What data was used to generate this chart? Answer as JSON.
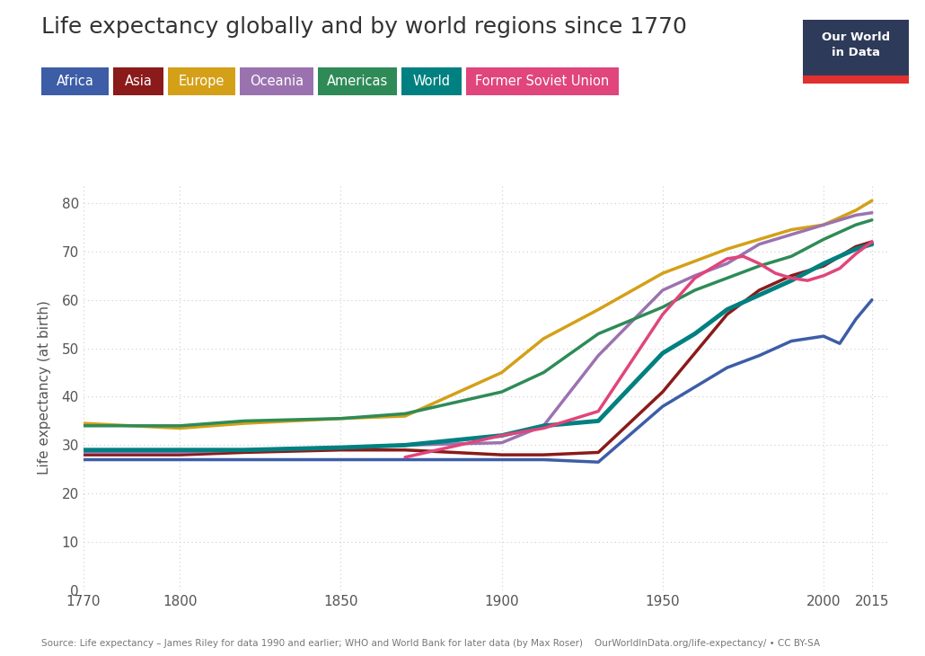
{
  "title": "Life expectancy globally and by world regions since 1770",
  "ylabel": "Life expectancy (at birth)",
  "source_text": "Source: Life expectancy – James Riley for data 1990 and earlier; WHO and World Bank for later data (by Max Roser)    OurWorldInData.org/life-expectancy/ • CC BY-SA",
  "xlim": [
    1770,
    2020
  ],
  "ylim": [
    0,
    84
  ],
  "yticks": [
    0,
    10,
    20,
    30,
    40,
    50,
    60,
    70,
    80
  ],
  "xticks": [
    1770,
    1800,
    1850,
    1900,
    1950,
    2000,
    2015
  ],
  "series": [
    {
      "name": "Africa",
      "color": "#3d5da7",
      "linewidth": 2.5,
      "data": [
        [
          1770,
          27.0
        ],
        [
          1800,
          27.0
        ],
        [
          1820,
          27.0
        ],
        [
          1850,
          27.0
        ],
        [
          1870,
          27.0
        ],
        [
          1900,
          27.0
        ],
        [
          1913,
          27.0
        ],
        [
          1930,
          26.5
        ],
        [
          1950,
          38.0
        ],
        [
          1960,
          42.0
        ],
        [
          1970,
          46.0
        ],
        [
          1980,
          48.5
        ],
        [
          1990,
          51.5
        ],
        [
          2000,
          52.5
        ],
        [
          2005,
          51.0
        ],
        [
          2010,
          56.0
        ],
        [
          2015,
          60.0
        ]
      ]
    },
    {
      "name": "Asia",
      "color": "#8b1a1a",
      "linewidth": 2.5,
      "data": [
        [
          1770,
          28.0
        ],
        [
          1800,
          28.0
        ],
        [
          1820,
          28.5
        ],
        [
          1850,
          29.0
        ],
        [
          1870,
          29.0
        ],
        [
          1900,
          28.0
        ],
        [
          1913,
          28.0
        ],
        [
          1930,
          28.5
        ],
        [
          1950,
          41.0
        ],
        [
          1960,
          49.0
        ],
        [
          1970,
          57.0
        ],
        [
          1980,
          62.0
        ],
        [
          1990,
          65.0
        ],
        [
          2000,
          67.0
        ],
        [
          2010,
          71.0
        ],
        [
          2015,
          72.0
        ]
      ]
    },
    {
      "name": "Europe",
      "color": "#d4a017",
      "linewidth": 2.5,
      "data": [
        [
          1770,
          34.5
        ],
        [
          1800,
          33.5
        ],
        [
          1820,
          34.5
        ],
        [
          1850,
          35.5
        ],
        [
          1870,
          36.0
        ],
        [
          1900,
          45.0
        ],
        [
          1913,
          52.0
        ],
        [
          1930,
          58.0
        ],
        [
          1950,
          65.5
        ],
        [
          1960,
          68.0
        ],
        [
          1970,
          70.5
        ],
        [
          1980,
          72.5
        ],
        [
          1990,
          74.5
        ],
        [
          2000,
          75.5
        ],
        [
          2010,
          78.5
        ],
        [
          2015,
          80.5
        ]
      ]
    },
    {
      "name": "Oceania",
      "color": "#9b72b0",
      "linewidth": 2.5,
      "data": [
        [
          1770,
          28.5
        ],
        [
          1800,
          28.5
        ],
        [
          1820,
          29.0
        ],
        [
          1850,
          29.5
        ],
        [
          1870,
          30.0
        ],
        [
          1900,
          30.5
        ],
        [
          1913,
          34.0
        ],
        [
          1930,
          48.5
        ],
        [
          1950,
          62.0
        ],
        [
          1960,
          65.0
        ],
        [
          1970,
          67.5
        ],
        [
          1980,
          71.5
        ],
        [
          1990,
          73.5
        ],
        [
          2000,
          75.5
        ],
        [
          2010,
          77.5
        ],
        [
          2015,
          78.0
        ]
      ]
    },
    {
      "name": "Americas",
      "color": "#2e8b57",
      "linewidth": 2.5,
      "data": [
        [
          1770,
          34.0
        ],
        [
          1800,
          34.0
        ],
        [
          1820,
          35.0
        ],
        [
          1850,
          35.5
        ],
        [
          1870,
          36.5
        ],
        [
          1900,
          41.0
        ],
        [
          1913,
          45.0
        ],
        [
          1930,
          53.0
        ],
        [
          1950,
          58.5
        ],
        [
          1960,
          62.0
        ],
        [
          1970,
          64.5
        ],
        [
          1980,
          67.0
        ],
        [
          1990,
          69.0
        ],
        [
          2000,
          72.5
        ],
        [
          2010,
          75.5
        ],
        [
          2015,
          76.5
        ]
      ]
    },
    {
      "name": "World",
      "color": "#008080",
      "linewidth": 3.5,
      "data": [
        [
          1770,
          29.0
        ],
        [
          1800,
          29.0
        ],
        [
          1820,
          29.0
        ],
        [
          1850,
          29.5
        ],
        [
          1870,
          30.0
        ],
        [
          1900,
          32.0
        ],
        [
          1913,
          34.0
        ],
        [
          1930,
          35.0
        ],
        [
          1950,
          49.0
        ],
        [
          1960,
          53.0
        ],
        [
          1970,
          58.0
        ],
        [
          1980,
          61.0
        ],
        [
          1990,
          64.0
        ],
        [
          2000,
          67.5
        ],
        [
          2010,
          70.5
        ],
        [
          2015,
          71.5
        ]
      ]
    },
    {
      "name": "Former Soviet Union",
      "color": "#e0457b",
      "linewidth": 2.5,
      "data": [
        [
          1870,
          27.5
        ],
        [
          1900,
          32.0
        ],
        [
          1913,
          33.5
        ],
        [
          1930,
          37.0
        ],
        [
          1950,
          57.0
        ],
        [
          1960,
          64.5
        ],
        [
          1970,
          68.5
        ],
        [
          1975,
          69.0
        ],
        [
          1980,
          67.5
        ],
        [
          1985,
          65.5
        ],
        [
          1990,
          64.5
        ],
        [
          1995,
          64.0
        ],
        [
          2000,
          65.0
        ],
        [
          2005,
          66.5
        ],
        [
          2010,
          69.5
        ],
        [
          2015,
          72.0
        ]
      ]
    }
  ],
  "legend_colors": [
    "#3d5da7",
    "#8b1a1a",
    "#d4a017",
    "#9b72b0",
    "#2e8b57",
    "#008080",
    "#e0457b"
  ],
  "legend_labels": [
    "Africa",
    "Asia",
    "Europe",
    "Oceania",
    "Americas",
    "World",
    "Former Soviet Union"
  ],
  "background_color": "#ffffff",
  "grid_color": "#cccccc",
  "owid_box_color": "#2e3a59",
  "owid_bar_color": "#e03030"
}
